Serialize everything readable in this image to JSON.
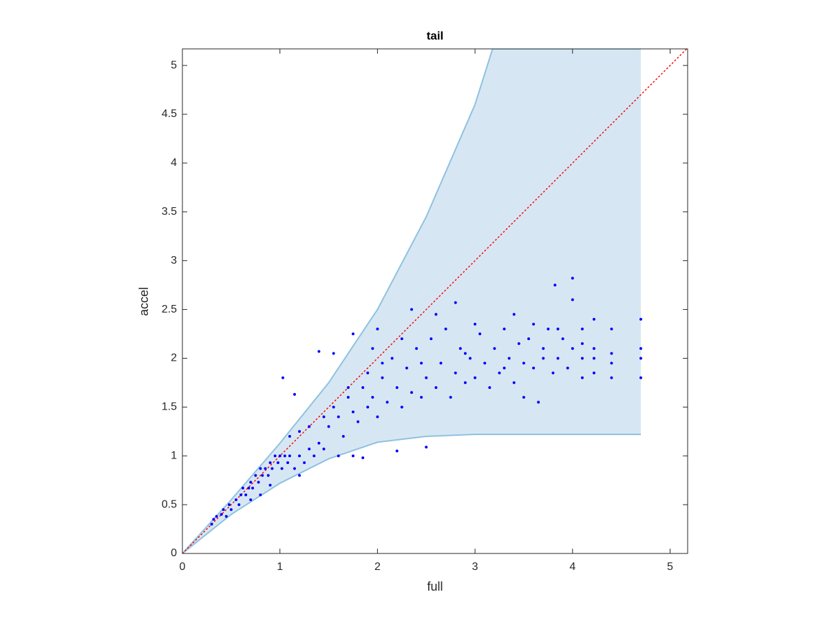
{
  "chart_data": {
    "type": "scatter",
    "title": "tail",
    "xlabel": "full",
    "ylabel": "accel",
    "xlim": [
      0,
      5.18
    ],
    "ylim": [
      0,
      5.17
    ],
    "xticks": [
      0,
      1,
      2,
      3,
      4,
      5
    ],
    "yticks": [
      0,
      0.5,
      1,
      1.5,
      2,
      2.5,
      3,
      3.5,
      4,
      4.5,
      5
    ],
    "band": {
      "color": "#d6e7f3",
      "edge_color": "#8ec1e0",
      "x": [
        0,
        0.5,
        1,
        1.5,
        2,
        2.5,
        3,
        3.18,
        4,
        4.7
      ],
      "upper": [
        0,
        0.55,
        1.13,
        1.75,
        2.5,
        3.45,
        4.6,
        5.17,
        5.17,
        5.17
      ],
      "lower": [
        0,
        0.4,
        0.72,
        0.97,
        1.14,
        1.2,
        1.22,
        1.22,
        1.22,
        1.22
      ]
    },
    "reference_line": {
      "color": "#ff0000",
      "x": [
        0,
        5.17
      ],
      "y": [
        0,
        5.17
      ]
    },
    "series": [
      {
        "color": "#0000ff",
        "x": [
          0.3,
          0.32,
          0.35,
          0.4,
          0.42,
          0.45,
          0.48,
          0.5,
          0.55,
          0.58,
          0.6,
          0.62,
          0.65,
          0.68,
          0.7,
          0.72,
          0.75,
          0.78,
          0.8,
          0.82,
          0.85,
          0.88,
          0.9,
          0.92,
          0.95,
          0.98,
          1.0,
          1.02,
          1.05,
          1.08,
          1.1,
          1.15,
          1.2,
          1.25,
          1.3,
          1.35,
          1.4,
          1.45,
          1.03,
          1.15,
          1.4,
          1.5,
          1.55,
          1.6,
          1.65,
          1.7,
          1.75,
          1.8,
          1.85,
          1.9,
          1.95,
          2.0,
          2.05,
          2.1,
          2.15,
          2.2,
          2.25,
          2.3,
          2.35,
          2.4,
          2.45,
          2.5,
          2.55,
          2.6,
          2.65,
          2.7,
          2.75,
          2.8,
          2.85,
          2.9,
          2.95,
          3.0,
          3.05,
          3.1,
          3.15,
          3.2,
          3.25,
          3.3,
          3.35,
          3.4,
          3.45,
          3.5,
          3.55,
          3.6,
          3.65,
          3.7,
          3.75,
          3.8,
          3.85,
          3.9,
          3.95,
          4.0,
          4.0,
          4.0,
          3.82,
          4.1,
          4.1,
          4.1,
          4.22,
          4.22,
          4.22,
          4.4,
          4.4,
          4.4,
          4.7,
          4.7,
          4.7,
          4.7,
          2.8,
          2.35,
          2.2,
          1.75,
          2.5,
          1.85,
          1.6,
          0.7,
          0.8,
          0.9,
          1.2,
          3.5,
          2.6,
          2.0,
          1.95,
          1.75,
          1.55,
          3.0,
          3.4,
          1.3,
          1.45,
          1.2,
          1.1,
          2.25,
          2.9,
          3.7,
          3.6,
          3.3,
          2.45,
          2.05,
          1.7,
          1.9,
          3.85,
          4.1,
          4.22,
          4.4
        ],
        "y": [
          0.3,
          0.35,
          0.38,
          0.4,
          0.45,
          0.38,
          0.5,
          0.45,
          0.55,
          0.5,
          0.6,
          0.67,
          0.6,
          0.67,
          0.73,
          0.67,
          0.8,
          0.73,
          0.87,
          0.8,
          0.87,
          0.8,
          0.93,
          0.87,
          1.0,
          0.93,
          1.0,
          0.87,
          1.0,
          0.93,
          1.0,
          0.87,
          1.0,
          0.93,
          1.07,
          1.0,
          1.13,
          1.07,
          1.8,
          1.63,
          2.07,
          1.3,
          1.5,
          1.4,
          1.2,
          1.6,
          1.45,
          1.35,
          1.7,
          1.5,
          1.6,
          1.4,
          1.8,
          1.55,
          2.0,
          1.7,
          1.5,
          1.9,
          1.65,
          2.1,
          1.6,
          1.8,
          2.2,
          1.7,
          1.95,
          2.3,
          1.6,
          1.85,
          2.1,
          1.75,
          2.0,
          1.8,
          2.25,
          1.95,
          1.7,
          2.1,
          1.85,
          2.3,
          2.0,
          1.75,
          2.15,
          1.95,
          2.2,
          1.9,
          1.55,
          2.1,
          2.3,
          1.85,
          2.0,
          2.2,
          1.9,
          2.1,
          2.82,
          2.6,
          2.75,
          2.0,
          2.3,
          1.8,
          2.1,
          2.4,
          1.85,
          2.05,
          2.3,
          1.8,
          2.1,
          2.4,
          1.8,
          2.0,
          2.57,
          2.5,
          1.05,
          1.0,
          1.09,
          0.98,
          1.0,
          0.55,
          0.6,
          0.7,
          0.8,
          1.6,
          2.45,
          2.3,
          2.1,
          2.25,
          2.05,
          2.35,
          2.45,
          1.3,
          1.4,
          1.25,
          1.2,
          2.2,
          2.05,
          2.0,
          2.35,
          1.9,
          1.95,
          1.95,
          1.7,
          1.85,
          2.3,
          2.15,
          2.0,
          1.95
        ]
      }
    ]
  }
}
